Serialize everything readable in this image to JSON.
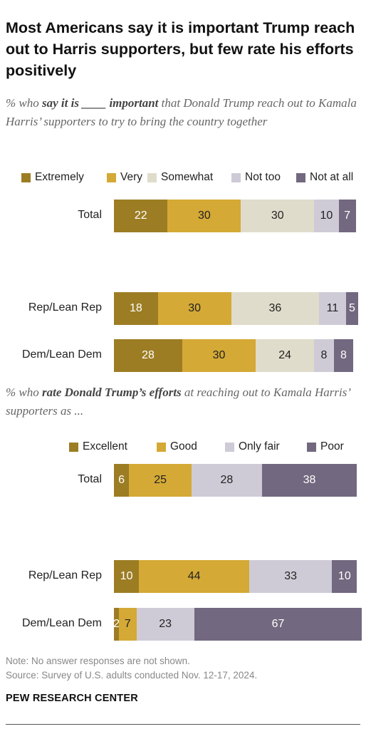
{
  "title": "Most Americans say it is important Trump reach out to Harris supporters, but few rate his efforts positively",
  "subtitle1": {
    "pre": "% who ",
    "bold1": "say it is ____ important",
    "post": " that Donald Trump reach out to Kamala Harris’ supporters to try to bring the country together"
  },
  "subtitle2": {
    "pre": "% who ",
    "bold1": "rate Donald Trump’s efforts",
    "post": " at reaching out to Kamala Harris’ supporters as ..."
  },
  "colors": {
    "extremely": "#9c7d24",
    "very": "#d4a935",
    "somewhat": "#e0dccb",
    "not_too": "#cfcbd6",
    "not_at_all": "#72687f",
    "excellent": "#9c7d24",
    "good": "#d4a935",
    "only_fair": "#cfcbd6",
    "poor": "#72687f"
  },
  "chart_data": [
    {
      "type": "bar",
      "orientation": "horizontal-stacked",
      "categories": [
        "Total",
        "Rep/Lean Rep",
        "Dem/Lean Dem"
      ],
      "series": [
        {
          "name": "Extremely",
          "values": [
            22,
            18,
            28
          ]
        },
        {
          "name": "Very",
          "values": [
            30,
            30,
            30
          ]
        },
        {
          "name": "Somewhat",
          "values": [
            30,
            36,
            24
          ]
        },
        {
          "name": "Not too",
          "values": [
            10,
            11,
            8
          ]
        },
        {
          "name": "Not at all",
          "values": [
            7,
            5,
            8
          ]
        }
      ],
      "legend": "top"
    },
    {
      "type": "bar",
      "orientation": "horizontal-stacked",
      "categories": [
        "Total",
        "Rep/Lean Rep",
        "Dem/Lean Dem"
      ],
      "series": [
        {
          "name": "Excellent",
          "values": [
            6,
            10,
            2
          ]
        },
        {
          "name": "Good",
          "values": [
            25,
            44,
            7
          ]
        },
        {
          "name": "Only fair",
          "values": [
            28,
            33,
            23
          ]
        },
        {
          "name": "Poor",
          "values": [
            38,
            10,
            67
          ]
        }
      ],
      "legend": "top"
    }
  ],
  "note": "Note: No answer responses are not shown.",
  "source": "Source: Survey of U.S. adults conducted Nov. 12-17, 2024.",
  "brand": "PEW RESEARCH CENTER"
}
